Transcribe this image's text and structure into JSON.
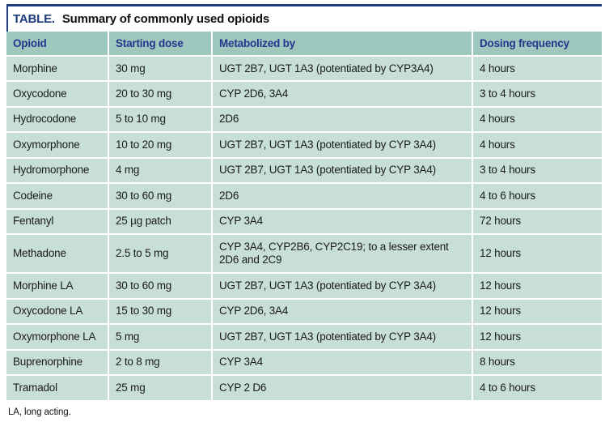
{
  "title": {
    "label": "TABLE.",
    "text": "Summary of commonly used opioids"
  },
  "table": {
    "columns": [
      "Opioid",
      "Starting dose",
      "Metabolized by",
      "Dosing frequency"
    ],
    "rows": [
      [
        "Morphine",
        "30 mg",
        "UGT 2B7, UGT 1A3 (potentiated by CYP3A4)",
        "4 hours"
      ],
      [
        "Oxycodone",
        "20 to 30 mg",
        "CYP 2D6, 3A4",
        "3 to 4 hours"
      ],
      [
        "Hydrocodone",
        "5 to 10 mg",
        "2D6",
        "4 hours"
      ],
      [
        "Oxymorphone",
        "10 to 20 mg",
        "UGT 2B7, UGT 1A3 (potentiated by CYP 3A4)",
        "4 hours"
      ],
      [
        "Hydromorphone",
        "4 mg",
        "UGT 2B7, UGT 1A3 (potentiated by CYP 3A4)",
        "3 to 4 hours"
      ],
      [
        "Codeine",
        "30 to 60 mg",
        "2D6",
        "4 to 6 hours"
      ],
      [
        "Fentanyl",
        "25 µg patch",
        "CYP 3A4",
        "72 hours"
      ],
      [
        "Methadone",
        "2.5 to 5 mg",
        "CYP 3A4, CYP2B6, CYP2C19; to a lesser extent 2D6 and 2C9",
        "12 hours"
      ],
      [
        "Morphine LA",
        "30 to 60 mg",
        "UGT 2B7, UGT 1A3 (potentiated by CYP 3A4)",
        "12 hours"
      ],
      [
        "Oxycodone LA",
        "15 to 30 mg",
        "CYP 2D6, 3A4",
        "12 hours"
      ],
      [
        "Oxymorphone LA",
        "5 mg",
        "UGT 2B7, UGT 1A3 (potentiated by CYP 3A4)",
        "12 hours"
      ],
      [
        "Buprenorphine",
        "2 to 8 mg",
        "CYP 3A4",
        "8 hours"
      ],
      [
        "Tramadol",
        "25 mg",
        "CYP 2 D6",
        "4 to 6 hours"
      ]
    ]
  },
  "footnote": "LA, long acting.",
  "colors": {
    "navy": "#1d3a7c",
    "header_text": "#23368d",
    "header_bg": "#9ec7bd",
    "row_bg": "#c8dfd9",
    "body_text": "#1a1a1a"
  }
}
